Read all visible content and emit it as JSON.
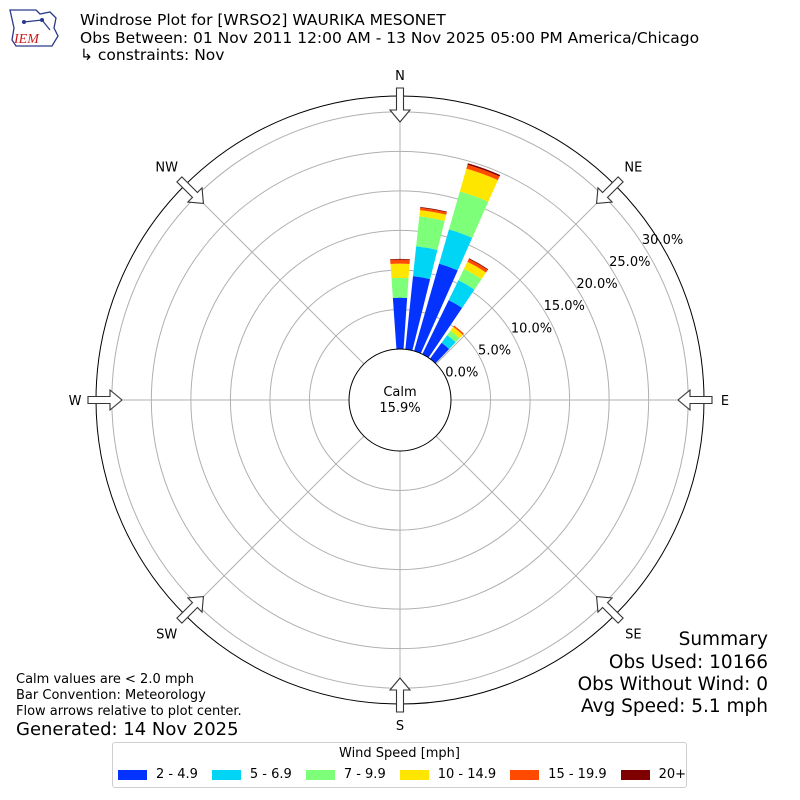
{
  "header": {
    "logo_text": "IEM",
    "title": "Windrose Plot for [WRSO2] WAURIKA MESONET",
    "subtitle": "Obs Between: 01 Nov 2011 12:00 AM - 13 Nov 2025 05:00 PM America/Chicago",
    "constraints": "↳ constraints: Nov"
  },
  "colors": {
    "2 - 4.9": "#0433ff",
    "5 - 6.9": "#00d5f5",
    "7 - 9.9": "#7dff7a",
    "10 - 14.9": "#ffe600",
    "15 - 19.9": "#ff4a00",
    "20+": "#7f0000"
  },
  "chart_data": {
    "type": "windrose",
    "directions_labels": [
      "N",
      "NE",
      "E",
      "SE",
      "S",
      "SW",
      "W",
      "NW"
    ],
    "radial_ticks": [
      "0.0%",
      "5.0%",
      "10.0%",
      "15.0%",
      "20.0%",
      "25.0%",
      "30.0%"
    ],
    "radial_max": 32,
    "calm": {
      "label": "Calm",
      "value": "15.9%"
    },
    "bins": [
      "2 - 4.9",
      "5 - 6.9",
      "7 - 9.9",
      "10 - 14.9",
      "15 - 19.9",
      "20+"
    ],
    "sectors": [
      {
        "dir": 0,
        "values": [
          6.5,
          0,
          2.5,
          1.8,
          0.5,
          0.1
        ]
      },
      {
        "dir": 10,
        "values": [
          9.3,
          3.8,
          3.8,
          0.8,
          0.3,
          0.1
        ]
      },
      {
        "dir": 20,
        "values": [
          11.5,
          4.5,
          5.0,
          3.0,
          0.5,
          0.2
        ]
      },
      {
        "dir": 30,
        "values": [
          7.6,
          2.8,
          1.6,
          1.0,
          0.4,
          0.1
        ]
      },
      {
        "dir": 40,
        "values": [
          2.5,
          1.2,
          0.7,
          0.6,
          0.2,
          0.0
        ]
      }
    ],
    "legend": {
      "title": "Wind Speed [mph]",
      "placement": "bottom-center"
    }
  },
  "summary": {
    "title": "Summary",
    "obs_used": "Obs Used: 10166",
    "obs_without_wind": "Obs Without Wind: 0",
    "avg_speed": "Avg Speed: 5.1 mph"
  },
  "notes": {
    "calm_note": "Calm values are < 2.0 mph",
    "bar_convention": "Bar Convention: Meteorology",
    "flow_arrows": "Flow arrows relative to plot center.",
    "generated": "Generated: 14 Nov 2025"
  }
}
